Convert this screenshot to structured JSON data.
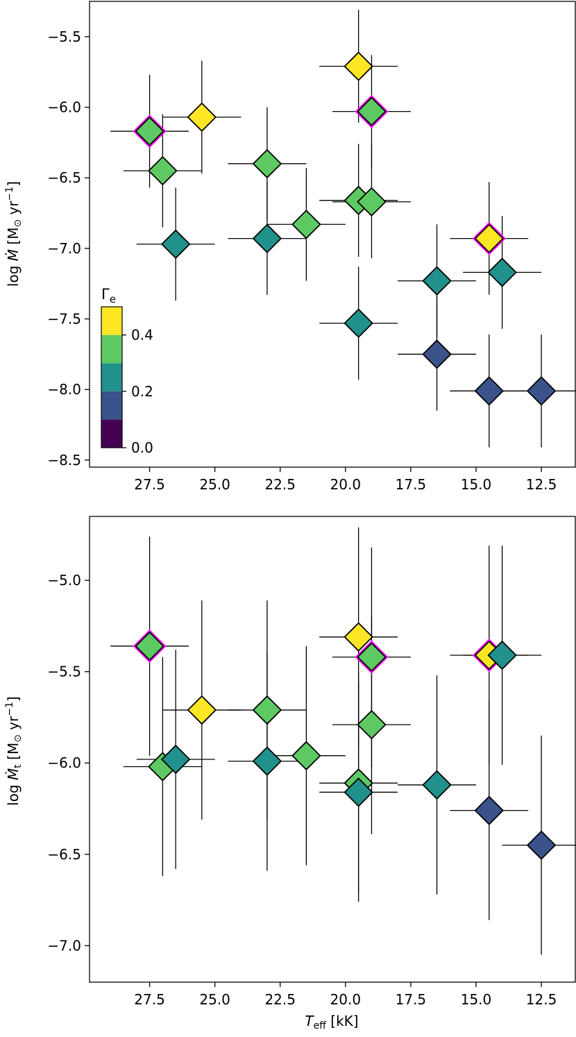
{
  "chart_data": [
    {
      "type": "scatter",
      "ylabel_parts": [
        "log ",
        "Ṁ",
        " [M",
        "⊙",
        " yr",
        "−1",
        "]"
      ],
      "xlim": [
        29.8,
        11.2
      ],
      "ylim": [
        -8.55,
        -5.25
      ],
      "xticks": [
        27.5,
        25.0,
        22.5,
        20.0,
        17.5,
        15.0,
        12.5
      ],
      "xtick_labels": [
        "27.5",
        "25.0",
        "22.5",
        "20.0",
        "17.5",
        "15.0",
        "12.5"
      ],
      "yticks": [
        -5.5,
        -6.0,
        -6.5,
        -7.0,
        -7.5,
        -8.0,
        -8.5
      ],
      "ytick_labels": [
        "−5.5",
        "−6.0",
        "−6.5",
        "−7.0",
        "−7.5",
        "−8.0",
        "−8.5"
      ],
      "colorbar": {
        "label_main": "Γ",
        "label_sub": "e",
        "ticks": [
          0.0,
          0.2,
          0.4
        ],
        "tick_labels": [
          "0.0",
          "0.2",
          "0.4"
        ],
        "range": [
          0.0,
          0.5
        ],
        "bins": [
          {
            "from": 0.0,
            "to": 0.1,
            "color": "#440154"
          },
          {
            "from": 0.1,
            "to": 0.2,
            "color": "#3b528b"
          },
          {
            "from": 0.2,
            "to": 0.3,
            "color": "#21918c"
          },
          {
            "from": 0.3,
            "to": 0.4,
            "color": "#5ec962"
          },
          {
            "from": 0.4,
            "to": 0.5,
            "color": "#fde725"
          }
        ]
      },
      "points": [
        {
          "teff": 27.5,
          "y": -6.17,
          "xerr": 1.5,
          "yerr": 0.4,
          "gamma": 0.35,
          "highlight": true
        },
        {
          "teff": 27.0,
          "y": -6.45,
          "xerr": 1.5,
          "yerr": 0.4,
          "gamma": 0.35,
          "highlight": false
        },
        {
          "teff": 26.5,
          "y": -6.97,
          "xerr": 1.5,
          "yerr": 0.4,
          "gamma": 0.25,
          "highlight": false
        },
        {
          "teff": 25.5,
          "y": -6.07,
          "xerr": 1.5,
          "yerr": 0.4,
          "gamma": 0.45,
          "highlight": false
        },
        {
          "teff": 23.0,
          "y": -6.4,
          "xerr": 1.5,
          "yerr": 0.4,
          "gamma": 0.35,
          "highlight": false
        },
        {
          "teff": 23.0,
          "y": -6.93,
          "xerr": 1.5,
          "yerr": 0.4,
          "gamma": 0.25,
          "highlight": false
        },
        {
          "teff": 21.5,
          "y": -6.83,
          "xerr": 1.5,
          "yerr": 0.4,
          "gamma": 0.35,
          "highlight": false
        },
        {
          "teff": 19.5,
          "y": -5.71,
          "xerr": 1.5,
          "yerr": 0.4,
          "gamma": 0.45,
          "highlight": false
        },
        {
          "teff": 19.0,
          "y": -6.03,
          "xerr": 1.5,
          "yerr": 0.4,
          "gamma": 0.35,
          "highlight": true
        },
        {
          "teff": 19.5,
          "y": -6.66,
          "xerr": 1.5,
          "yerr": 0.4,
          "gamma": 0.35,
          "highlight": false
        },
        {
          "teff": 19.0,
          "y": -6.67,
          "xerr": 1.5,
          "yerr": 0.4,
          "gamma": 0.35,
          "highlight": false
        },
        {
          "teff": 19.5,
          "y": -7.53,
          "xerr": 1.5,
          "yerr": 0.4,
          "gamma": 0.25,
          "highlight": false
        },
        {
          "teff": 16.5,
          "y": -7.23,
          "xerr": 1.5,
          "yerr": 0.4,
          "gamma": 0.25,
          "highlight": false
        },
        {
          "teff": 16.5,
          "y": -7.75,
          "xerr": 1.5,
          "yerr": 0.4,
          "gamma": 0.15,
          "highlight": false
        },
        {
          "teff": 14.5,
          "y": -6.93,
          "xerr": 1.5,
          "yerr": 0.4,
          "gamma": 0.45,
          "highlight": true
        },
        {
          "teff": 14.0,
          "y": -7.17,
          "xerr": 1.5,
          "yerr": 0.4,
          "gamma": 0.25,
          "highlight": false
        },
        {
          "teff": 14.5,
          "y": -8.01,
          "xerr": 1.5,
          "yerr": 0.4,
          "gamma": 0.15,
          "highlight": false
        },
        {
          "teff": 12.5,
          "y": -8.01,
          "xerr": 1.5,
          "yerr": 0.4,
          "gamma": 0.15,
          "highlight": false
        }
      ]
    },
    {
      "type": "scatter",
      "xlabel_parts": [
        "T",
        "eff",
        " [kK]"
      ],
      "ylabel_parts": [
        "log ",
        "Ṁ",
        "t",
        " [M",
        "⊙",
        " yr",
        "−1",
        "]"
      ],
      "xlim": [
        29.8,
        11.2
      ],
      "ylim": [
        -7.2,
        -4.65
      ],
      "xticks": [
        27.5,
        25.0,
        22.5,
        20.0,
        17.5,
        15.0,
        12.5
      ],
      "xtick_labels": [
        "27.5",
        "25.0",
        "22.5",
        "20.0",
        "17.5",
        "15.0",
        "12.5"
      ],
      "yticks": [
        -5.0,
        -5.5,
        -6.0,
        -6.5,
        -7.0
      ],
      "ytick_labels": [
        "−5.0",
        "−5.5",
        "−6.0",
        "−6.5",
        "−7.0"
      ],
      "points": [
        {
          "teff": 27.5,
          "y": -5.36,
          "xerr": 1.5,
          "yerr": 0.6,
          "gamma": 0.35,
          "highlight": true
        },
        {
          "teff": 27.0,
          "y": -6.02,
          "xerr": 1.5,
          "yerr": 0.6,
          "gamma": 0.35,
          "highlight": false
        },
        {
          "teff": 26.5,
          "y": -5.98,
          "xerr": 1.5,
          "yerr": 0.6,
          "gamma": 0.25,
          "highlight": false
        },
        {
          "teff": 25.5,
          "y": -5.71,
          "xerr": 1.5,
          "yerr": 0.6,
          "gamma": 0.45,
          "highlight": false
        },
        {
          "teff": 23.0,
          "y": -5.71,
          "xerr": 1.5,
          "yerr": 0.6,
          "gamma": 0.35,
          "highlight": false
        },
        {
          "teff": 23.0,
          "y": -5.99,
          "xerr": 1.5,
          "yerr": 0.6,
          "gamma": 0.25,
          "highlight": false
        },
        {
          "teff": 21.5,
          "y": -5.96,
          "xerr": 1.5,
          "yerr": 0.6,
          "gamma": 0.35,
          "highlight": false
        },
        {
          "teff": 19.5,
          "y": -5.31,
          "xerr": 1.5,
          "yerr": 0.6,
          "gamma": 0.45,
          "highlight": false
        },
        {
          "teff": 19.0,
          "y": -5.42,
          "xerr": 1.5,
          "yerr": 0.6,
          "gamma": 0.35,
          "highlight": true
        },
        {
          "teff": 19.0,
          "y": -5.79,
          "xerr": 1.5,
          "yerr": 0.6,
          "gamma": 0.35,
          "highlight": false
        },
        {
          "teff": 19.5,
          "y": -6.11,
          "xerr": 1.5,
          "yerr": 0.6,
          "gamma": 0.35,
          "highlight": false
        },
        {
          "teff": 19.5,
          "y": -6.16,
          "xerr": 1.5,
          "yerr": 0.6,
          "gamma": 0.25,
          "highlight": false
        },
        {
          "teff": 16.5,
          "y": -6.12,
          "xerr": 1.5,
          "yerr": 0.6,
          "gamma": 0.25,
          "highlight": false
        },
        {
          "teff": 14.5,
          "y": -5.41,
          "xerr": 1.5,
          "yerr": 0.6,
          "gamma": 0.45,
          "highlight": true
        },
        {
          "teff": 14.0,
          "y": -5.41,
          "xerr": 1.5,
          "yerr": 0.6,
          "gamma": 0.25,
          "highlight": false
        },
        {
          "teff": 14.5,
          "y": -6.26,
          "xerr": 1.5,
          "yerr": 0.6,
          "gamma": 0.15,
          "highlight": false
        },
        {
          "teff": 12.5,
          "y": -6.45,
          "xerr": 1.5,
          "yerr": 0.6,
          "gamma": 0.15,
          "highlight": false
        }
      ]
    }
  ],
  "colors": {
    "highlight_outline": "#ff00ff",
    "marker_edge": "#000000",
    "error_bar": "#000000"
  }
}
